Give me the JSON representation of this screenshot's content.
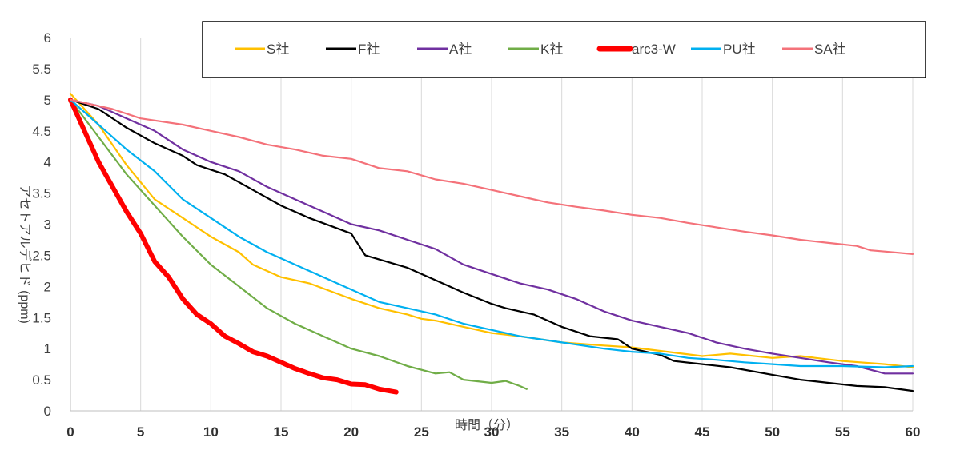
{
  "chart_data": {
    "type": "line",
    "title": "",
    "xlabel": "時間（分）",
    "ylabel": "アセトアルデヒド (ppm)",
    "xlim": [
      0,
      60
    ],
    "ylim": [
      0,
      6
    ],
    "x_ticks": [
      "0",
      "5",
      "10",
      "15",
      "20",
      "25",
      "30",
      "35",
      "40",
      "45",
      "50",
      "55",
      "60"
    ],
    "y_ticks": [
      "0",
      "0.5",
      "1",
      "1.5",
      "2",
      "2.5",
      "3",
      "3.5",
      "4",
      "4.5",
      "5",
      "5.5",
      "6"
    ],
    "grid": "vertical",
    "legend_position": "top",
    "series": [
      {
        "name": "S社",
        "color": "#FFC000",
        "points": [
          [
            0,
            5.1
          ],
          [
            2,
            4.6
          ],
          [
            4,
            3.95
          ],
          [
            6,
            3.4
          ],
          [
            8,
            3.1
          ],
          [
            10,
            2.8
          ],
          [
            12,
            2.55
          ],
          [
            13,
            2.35
          ],
          [
            15,
            2.15
          ],
          [
            17,
            2.05
          ],
          [
            20,
            1.8
          ],
          [
            22,
            1.65
          ],
          [
            24,
            1.55
          ],
          [
            25,
            1.48
          ],
          [
            26,
            1.45
          ],
          [
            28,
            1.35
          ],
          [
            30,
            1.25
          ],
          [
            32,
            1.2
          ],
          [
            35,
            1.1
          ],
          [
            38,
            1.05
          ],
          [
            40,
            1.02
          ],
          [
            45,
            0.88
          ],
          [
            47,
            0.92
          ],
          [
            50,
            0.85
          ],
          [
            52,
            0.88
          ],
          [
            55,
            0.8
          ],
          [
            58,
            0.75
          ],
          [
            60,
            0.7
          ]
        ]
      },
      {
        "name": "F社",
        "color": "#000000",
        "points": [
          [
            0,
            5.0
          ],
          [
            2,
            4.85
          ],
          [
            4,
            4.55
          ],
          [
            6,
            4.3
          ],
          [
            8,
            4.1
          ],
          [
            9,
            3.95
          ],
          [
            11,
            3.8
          ],
          [
            13,
            3.55
          ],
          [
            15,
            3.3
          ],
          [
            17,
            3.1
          ],
          [
            20,
            2.85
          ],
          [
            21,
            2.5
          ],
          [
            24,
            2.3
          ],
          [
            26,
            2.1
          ],
          [
            28,
            1.9
          ],
          [
            30,
            1.72
          ],
          [
            31,
            1.65
          ],
          [
            33,
            1.55
          ],
          [
            35,
            1.35
          ],
          [
            37,
            1.2
          ],
          [
            39,
            1.15
          ],
          [
            40,
            1.0
          ],
          [
            42,
            0.9
          ],
          [
            43,
            0.8
          ],
          [
            45,
            0.75
          ],
          [
            47,
            0.7
          ],
          [
            50,
            0.58
          ],
          [
            52,
            0.5
          ],
          [
            54,
            0.45
          ],
          [
            56,
            0.4
          ],
          [
            58,
            0.38
          ],
          [
            60,
            0.32
          ]
        ]
      },
      {
        "name": "A社",
        "color": "#7030A0",
        "points": [
          [
            0,
            5.0
          ],
          [
            2,
            4.9
          ],
          [
            4,
            4.7
          ],
          [
            6,
            4.5
          ],
          [
            8,
            4.2
          ],
          [
            10,
            4.0
          ],
          [
            12,
            3.85
          ],
          [
            14,
            3.6
          ],
          [
            16,
            3.4
          ],
          [
            18,
            3.2
          ],
          [
            20,
            3.0
          ],
          [
            22,
            2.9
          ],
          [
            24,
            2.75
          ],
          [
            26,
            2.6
          ],
          [
            28,
            2.35
          ],
          [
            30,
            2.2
          ],
          [
            32,
            2.05
          ],
          [
            34,
            1.95
          ],
          [
            36,
            1.8
          ],
          [
            38,
            1.6
          ],
          [
            40,
            1.45
          ],
          [
            42,
            1.35
          ],
          [
            44,
            1.25
          ],
          [
            46,
            1.1
          ],
          [
            48,
            1.0
          ],
          [
            50,
            0.92
          ],
          [
            52,
            0.85
          ],
          [
            54,
            0.78
          ],
          [
            56,
            0.72
          ],
          [
            58,
            0.6
          ],
          [
            60,
            0.6
          ]
        ]
      },
      {
        "name": "K社",
        "color": "#70AD47",
        "points": [
          [
            0,
            5.0
          ],
          [
            2,
            4.4
          ],
          [
            4,
            3.8
          ],
          [
            6,
            3.3
          ],
          [
            8,
            2.8
          ],
          [
            10,
            2.35
          ],
          [
            12,
            2.0
          ],
          [
            14,
            1.65
          ],
          [
            16,
            1.4
          ],
          [
            18,
            1.2
          ],
          [
            20,
            1.0
          ],
          [
            22,
            0.88
          ],
          [
            24,
            0.72
          ],
          [
            26,
            0.6
          ],
          [
            27,
            0.62
          ],
          [
            28,
            0.5
          ],
          [
            30,
            0.45
          ],
          [
            31,
            0.48
          ],
          [
            32,
            0.4
          ],
          [
            32.5,
            0.35
          ]
        ]
      },
      {
        "name": "arc3-W",
        "color": "#FF0000",
        "points": [
          [
            0,
            5.0
          ],
          [
            1,
            4.5
          ],
          [
            2,
            4.0
          ],
          [
            3,
            3.6
          ],
          [
            4,
            3.2
          ],
          [
            5,
            2.85
          ],
          [
            6,
            2.4
          ],
          [
            7,
            2.15
          ],
          [
            8,
            1.8
          ],
          [
            9,
            1.55
          ],
          [
            10,
            1.4
          ],
          [
            11,
            1.2
          ],
          [
            12,
            1.08
          ],
          [
            13,
            0.95
          ],
          [
            14,
            0.88
          ],
          [
            15,
            0.78
          ],
          [
            16,
            0.68
          ],
          [
            17,
            0.6
          ],
          [
            18,
            0.53
          ],
          [
            19,
            0.5
          ],
          [
            20,
            0.43
          ],
          [
            21,
            0.42
          ],
          [
            22,
            0.35
          ],
          [
            23.2,
            0.3
          ]
        ]
      },
      {
        "name": "PU社",
        "color": "#00B0F0",
        "points": [
          [
            0,
            5.0
          ],
          [
            2,
            4.6
          ],
          [
            4,
            4.2
          ],
          [
            6,
            3.85
          ],
          [
            8,
            3.4
          ],
          [
            10,
            3.1
          ],
          [
            12,
            2.8
          ],
          [
            14,
            2.55
          ],
          [
            15,
            2.45
          ],
          [
            17,
            2.25
          ],
          [
            20,
            1.95
          ],
          [
            22,
            1.75
          ],
          [
            24,
            1.65
          ],
          [
            26,
            1.55
          ],
          [
            28,
            1.4
          ],
          [
            30,
            1.3
          ],
          [
            32,
            1.2
          ],
          [
            35,
            1.1
          ],
          [
            38,
            1.0
          ],
          [
            40,
            0.95
          ],
          [
            42,
            0.92
          ],
          [
            44,
            0.85
          ],
          [
            46,
            0.82
          ],
          [
            48,
            0.78
          ],
          [
            50,
            0.75
          ],
          [
            52,
            0.72
          ],
          [
            55,
            0.72
          ],
          [
            58,
            0.7
          ],
          [
            60,
            0.72
          ]
        ]
      },
      {
        "name": "SA社",
        "color": "#F4727A",
        "points": [
          [
            0,
            5.0
          ],
          [
            3,
            4.85
          ],
          [
            5,
            4.7
          ],
          [
            8,
            4.6
          ],
          [
            10,
            4.5
          ],
          [
            12,
            4.4
          ],
          [
            14,
            4.28
          ],
          [
            16,
            4.2
          ],
          [
            18,
            4.1
          ],
          [
            20,
            4.05
          ],
          [
            22,
            3.9
          ],
          [
            24,
            3.85
          ],
          [
            26,
            3.72
          ],
          [
            28,
            3.65
          ],
          [
            30,
            3.55
          ],
          [
            32,
            3.45
          ],
          [
            34,
            3.35
          ],
          [
            36,
            3.28
          ],
          [
            38,
            3.22
          ],
          [
            40,
            3.15
          ],
          [
            42,
            3.1
          ],
          [
            44,
            3.02
          ],
          [
            46,
            2.95
          ],
          [
            48,
            2.88
          ],
          [
            50,
            2.82
          ],
          [
            52,
            2.75
          ],
          [
            54,
            2.7
          ],
          [
            56,
            2.65
          ],
          [
            57,
            2.58
          ],
          [
            58,
            2.56
          ],
          [
            60,
            2.52
          ]
        ]
      }
    ]
  }
}
